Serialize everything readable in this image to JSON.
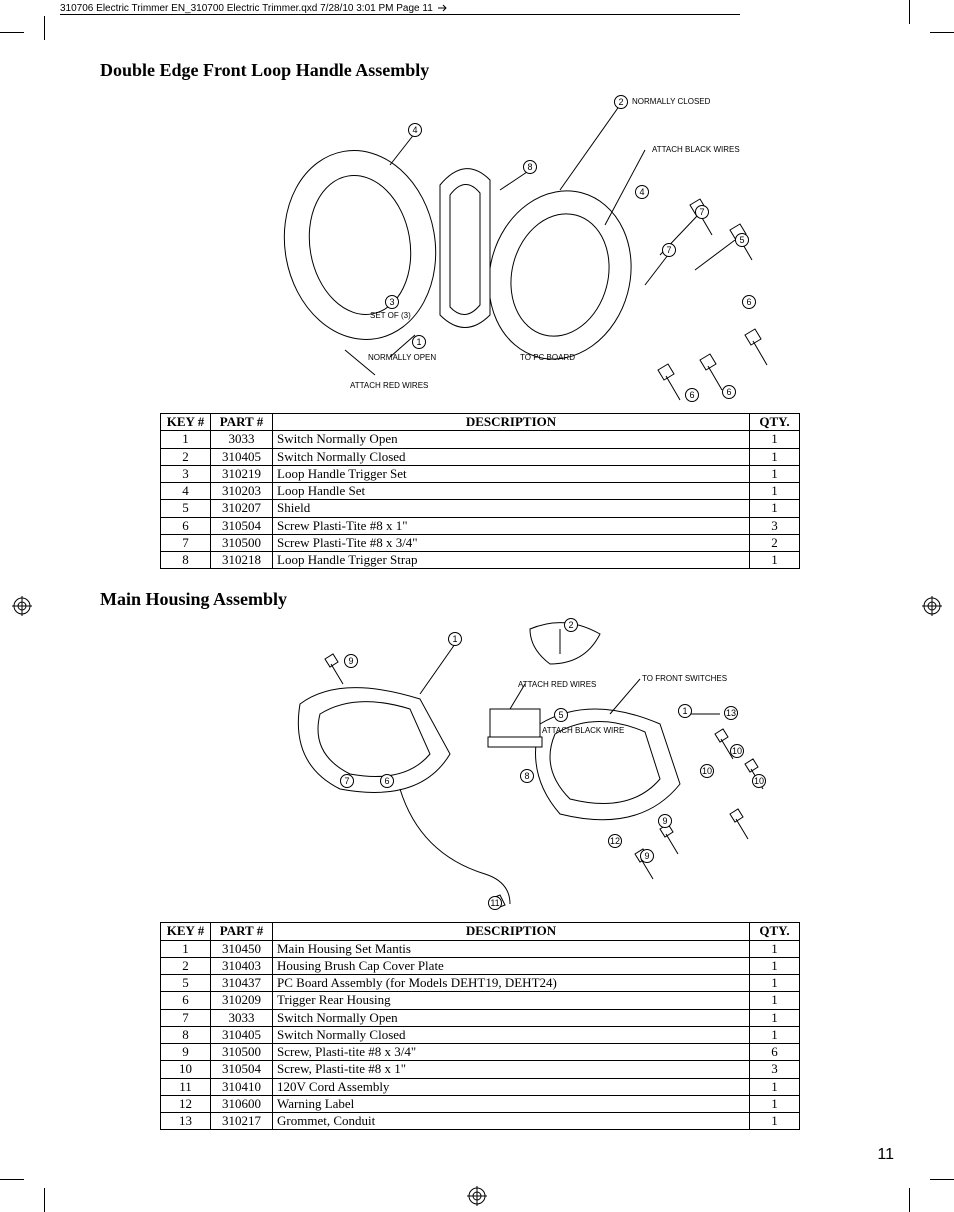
{
  "print_header": "310706 Electric Trimmer EN_310700 Electric Trimmer.qxd  7/28/10  3:01 PM  Page 11",
  "page_number": "11",
  "section1": {
    "title": "Double Edge Front Loop Handle Assembly",
    "diagram_labels": {
      "normally_closed": "NORMALLY CLOSED",
      "attach_black": "ATTACH BLACK WIRES",
      "set_of_3": "SET OF (3)",
      "normally_open": "NORMALLY OPEN",
      "to_pc_board": "TO PC BOARD",
      "attach_red": "ATTACH RED WIRES"
    },
    "callouts": [
      "1",
      "2",
      "3",
      "4",
      "4",
      "5",
      "6",
      "6",
      "6",
      "7",
      "7",
      "8"
    ],
    "table": {
      "headers": {
        "key": "KEY #",
        "part": "PART #",
        "desc": "DESCRIPTION",
        "qty": "QTY."
      },
      "rows": [
        {
          "key": "1",
          "part": "3033",
          "desc": "Switch Normally Open",
          "qty": "1"
        },
        {
          "key": "2",
          "part": "310405",
          "desc": "Switch Normally Closed",
          "qty": "1"
        },
        {
          "key": "3",
          "part": "310219",
          "desc": "Loop Handle Trigger Set",
          "qty": "1"
        },
        {
          "key": "4",
          "part": "310203",
          "desc": "Loop Handle Set",
          "qty": "1"
        },
        {
          "key": "5",
          "part": "310207",
          "desc": "Shield",
          "qty": "1"
        },
        {
          "key": "6",
          "part": "310504",
          "desc": "Screw Plasti-Tite #8 x 1\"",
          "qty": "3"
        },
        {
          "key": "7",
          "part": "310500",
          "desc": "Screw Plasti-Tite #8 x 3/4\"",
          "qty": "2"
        },
        {
          "key": "8",
          "part": "310218",
          "desc": "Loop Handle Trigger Strap",
          "qty": "1"
        }
      ]
    }
  },
  "section2": {
    "title": "Main Housing Assembly",
    "diagram_labels": {
      "attach_red": "ATTACH RED WIRES",
      "to_front_switches": "TO FRONT SWITCHES",
      "attach_black": "ATTACH BLACK WIRE"
    },
    "callouts": [
      "1",
      "1",
      "2",
      "5",
      "6",
      "7",
      "8",
      "9",
      "9",
      "9",
      "10",
      "10",
      "10",
      "11",
      "12",
      "13"
    ],
    "table": {
      "headers": {
        "key": "KEY #",
        "part": "PART #",
        "desc": "DESCRIPTION",
        "qty": "QTY."
      },
      "rows": [
        {
          "key": "1",
          "part": "310450",
          "desc": "Main Housing Set Mantis",
          "qty": "1"
        },
        {
          "key": "2",
          "part": "310403",
          "desc": "Housing Brush Cap Cover Plate",
          "qty": "1"
        },
        {
          "key": "5",
          "part": "310437",
          "desc": "PC Board Assembly (for Models DEHT19, DEHT24)",
          "qty": "1"
        },
        {
          "key": "6",
          "part": "310209",
          "desc": "Trigger Rear Housing",
          "qty": "1"
        },
        {
          "key": "7",
          "part": "3033",
          "desc": "Switch Normally Open",
          "qty": "1"
        },
        {
          "key": "8",
          "part": "310405",
          "desc": "Switch Normally Closed",
          "qty": "1"
        },
        {
          "key": "9",
          "part": "310500",
          "desc": "Screw, Plasti-tite #8 x 3/4\"",
          "qty": "6"
        },
        {
          "key": "10",
          "part": "310504",
          "desc": "Screw, Plasti-tite #8 x 1\"",
          "qty": "3"
        },
        {
          "key": "11",
          "part": "310410",
          "desc": "120V Cord Assembly",
          "qty": "1"
        },
        {
          "key": "12",
          "part": "310600",
          "desc": "Warning Label",
          "qty": "1"
        },
        {
          "key": "13",
          "part": "310217",
          "desc": "Grommet, Conduit",
          "qty": "1"
        }
      ]
    }
  },
  "style": {
    "page_bg": "#ffffff",
    "text_color": "#000000",
    "border_color": "#000000",
    "body_font": "Times New Roman",
    "header_font": "Arial",
    "title_fontsize_pt": 14,
    "table_fontsize_pt": 10,
    "diagram_label_fontsize_pt": 6
  }
}
